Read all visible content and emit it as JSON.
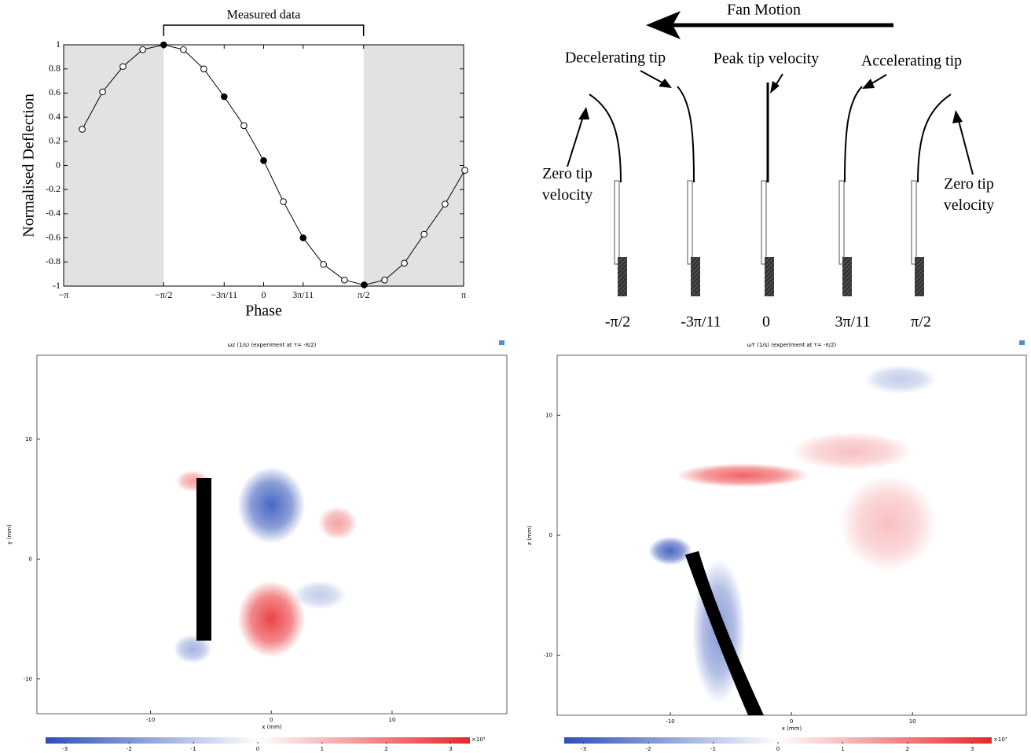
{
  "chart_data": [
    {
      "type": "line",
      "xlabel": "Phase",
      "ylabel": "Normalised Deflection",
      "annotation": {
        "text": "Measured data",
        "x": [
          -1.57,
          1.57
        ]
      },
      "x": [
        -2.85,
        -2.53,
        -2.21,
        -1.9,
        -1.57,
        -1.26,
        -0.94,
        -0.62,
        -0.31,
        0.0,
        0.31,
        0.62,
        0.94,
        1.27,
        1.58,
        1.9,
        2.21,
        2.52,
        2.85,
        3.16
      ],
      "values": [
        0.3,
        0.61,
        0.82,
        0.96,
        1.0,
        0.96,
        0.8,
        0.57,
        0.33,
        0.04,
        -0.3,
        -0.6,
        -0.82,
        -0.95,
        -0.99,
        -0.95,
        -0.81,
        -0.57,
        -0.32,
        -0.04
      ],
      "filled": [
        false,
        false,
        false,
        false,
        true,
        false,
        false,
        true,
        false,
        true,
        false,
        true,
        false,
        false,
        true,
        false,
        false,
        false,
        false,
        false
      ],
      "color": "#000000",
      "shaded": [
        [
          -3.14159,
          -1.5708
        ],
        [
          1.5708,
          3.14159
        ]
      ],
      "shade_color": "#e1e2e3",
      "xlim": [
        -3.14159,
        3.14159
      ],
      "ylim": [
        -1,
        1
      ],
      "xticks": [
        {
          "value": -3.14159,
          "label": "−π"
        },
        {
          "value": -1.5708,
          "label": "−π/2"
        },
        {
          "value": -0.62,
          "label": "−3π/11"
        },
        0,
        {
          "value": 0.62,
          "label": "3π/11"
        },
        {
          "value": 1.5708,
          "label": "π/2"
        },
        {
          "value": 3.14159,
          "label": "π"
        }
      ],
      "yticks": [
        1,
        0.8,
        0.6,
        0.4,
        0.2,
        0,
        -0.2,
        -0.4,
        -0.6,
        -0.8,
        -1
      ]
    },
    {
      "type": "heatmap",
      "title": "ωz (1/s) (experiment at τ= -π/2)",
      "xlabel": "x (mm)",
      "ylabel": "y (mm)",
      "xlim": [
        -19.4,
        19.5
      ],
      "ylim": [
        -12.9,
        17.0
      ],
      "xticks": [
        -10,
        0,
        10
      ],
      "yticks": [
        -10,
        0,
        10
      ],
      "clim": [
        -3.3,
        3.3
      ],
      "cticks": [
        -3,
        -2,
        -1,
        0,
        1,
        2,
        3
      ],
      "colorbar_label": "×10³",
      "colormap": [
        "#2d4fb8",
        "#ffffff",
        "#e8262a"
      ],
      "regions": [
        {
          "x": 0,
          "y": 4.5,
          "rx": 2.8,
          "ry": 3.2,
          "value": -3
        },
        {
          "x": 0,
          "y": -5,
          "rx": 2.8,
          "ry": 3.2,
          "value": 3
        },
        {
          "x": -6.5,
          "y": 6.5,
          "rx": 1.4,
          "ry": 0.9,
          "value": 1.5
        },
        {
          "x": 5.5,
          "y": 3,
          "rx": 1.6,
          "ry": 1.4,
          "value": 1.5
        },
        {
          "x": -6.5,
          "y": -7.5,
          "rx": 1.6,
          "ry": 1.2,
          "value": -1.5
        },
        {
          "x": 4,
          "y": -3,
          "rx": 2.2,
          "ry": 1.2,
          "value": -1
        }
      ]
    },
    {
      "type": "heatmap",
      "title": "ωY (1/s) (experiment at τ= -π/2)",
      "xlabel": "x (mm)",
      "ylabel": "z (mm)",
      "xlim": [
        -19.35,
        19.4
      ],
      "ylim": [
        -15,
        15
      ],
      "xticks": [
        -10,
        0,
        10
      ],
      "yticks": [
        -10,
        0,
        10
      ],
      "clim": [
        -3.3,
        3.3
      ],
      "cticks": [
        -3,
        -2,
        -1,
        0,
        1,
        2,
        3
      ],
      "colorbar_label": "×10³",
      "colormap": [
        "#2d4fb8",
        "#ffffff",
        "#e8262a"
      ],
      "regions": [
        {
          "x": -4,
          "y": 5,
          "rx": 5.5,
          "ry": 1.0,
          "value": 2.5
        },
        {
          "x": 8,
          "y": 1,
          "rx": 4,
          "ry": 4,
          "value": 1
        },
        {
          "x": 5,
          "y": 7,
          "rx": 5,
          "ry": 1.6,
          "value": 1
        },
        {
          "x": -10,
          "y": -1.3,
          "rx": 1.8,
          "ry": 1.2,
          "value": -3
        },
        {
          "x": -6,
          "y": -8,
          "rx": 2.2,
          "ry": 6,
          "value": -2
        },
        {
          "x": 9,
          "y": 13,
          "rx": 3,
          "ry": 1.2,
          "value": -1
        }
      ]
    }
  ],
  "diagram": {
    "fan_motion": "Fan Motion",
    "decelerating": "Decelerating tip",
    "peak": "Peak tip velocity",
    "accelerating": "Accelerating tip",
    "zero_left": "Zero tip velocity",
    "zero_right": "Zero tip velocity",
    "phases": [
      "-π/2",
      "-3π/11",
      "0",
      "3π/11",
      "π/2"
    ]
  }
}
